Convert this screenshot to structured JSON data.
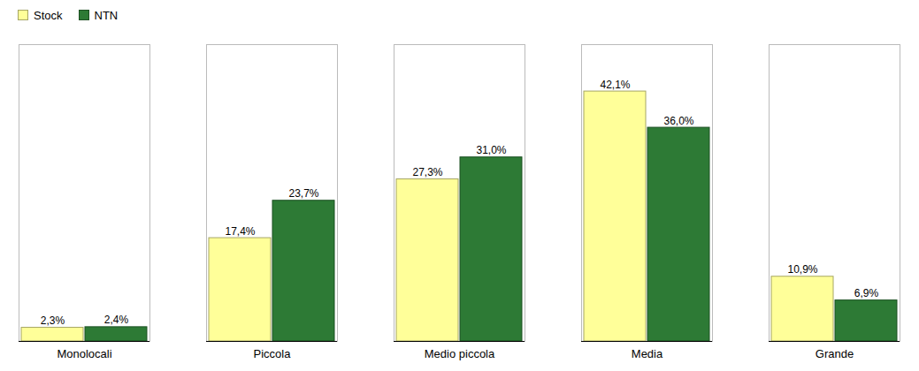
{
  "chart_data": {
    "type": "bar",
    "categories": [
      "Monolocali",
      "Piccola",
      "Medio piccola",
      "Media",
      "Grande"
    ],
    "series": [
      {
        "name": "Stock",
        "color": "#FFFF99",
        "values": [
          2.3,
          17.4,
          27.3,
          42.1,
          10.9
        ],
        "value_labels": [
          "2,3%",
          "17,4%",
          "27,3%",
          "42,1%",
          "10,9%"
        ]
      },
      {
        "name": "NTN",
        "color": "#2D7A35",
        "values": [
          2.4,
          23.7,
          31.0,
          36.0,
          6.9
        ],
        "value_labels": [
          "2,4%",
          "23,7%",
          "31,0%",
          "36,0%",
          "6,9%"
        ]
      }
    ],
    "ylim": [
      0,
      50
    ],
    "legend": "upper left",
    "data_labels": true,
    "tick_labels": "x"
  }
}
